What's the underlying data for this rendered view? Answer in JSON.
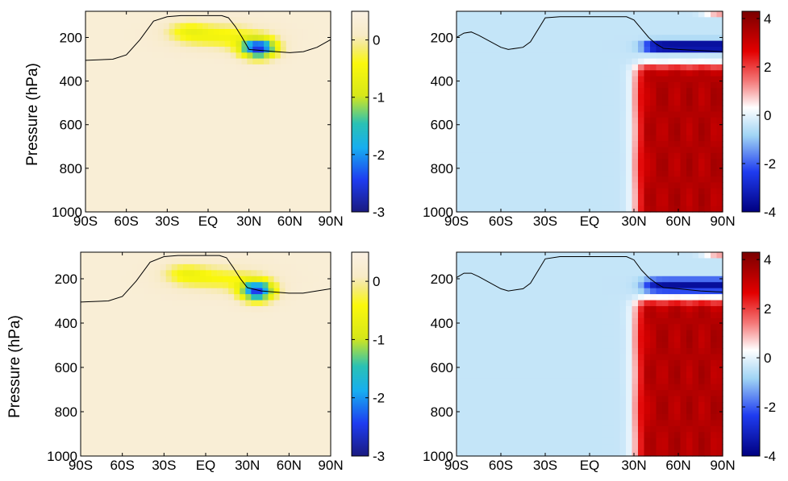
{
  "ylabel": "Pressure (hPa)",
  "chart_data": [
    {
      "type": "heatmap",
      "ylabel": "Pressure (hPa)",
      "x_ticks": [
        "90S",
        "60S",
        "30S",
        "EQ",
        "30N",
        "60N",
        "90N"
      ],
      "y_ticks": [
        "200",
        "400",
        "600",
        "800",
        "1000"
      ],
      "xlim": [
        -90,
        90
      ],
      "ylim": [
        1000,
        80
      ],
      "y_reversed": true,
      "colormap": "parula-reversed",
      "colorbar": {
        "ticks": [
          "0",
          "-1",
          "-2",
          "-3"
        ],
        "range": [
          -3,
          0.5
        ]
      },
      "background_value": 0.3,
      "features": [
        {
          "kind": "anomaly",
          "center_lat": 37,
          "center_p": 250,
          "peak": -2.8,
          "lat_halfwidth": 13,
          "p_halfwidth": 45
        },
        {
          "kind": "anomaly",
          "center_lat": 10,
          "center_p": 195,
          "peak": -0.8,
          "lat_halfwidth": 30,
          "p_halfwidth": 55
        },
        {
          "kind": "anomaly",
          "center_lat": -15,
          "center_p": 170,
          "peak": -0.6,
          "lat_halfwidth": 15,
          "p_halfwidth": 45
        }
      ],
      "tropopause": [
        [
          -90,
          305
        ],
        [
          -70,
          300
        ],
        [
          -60,
          280
        ],
        [
          -50,
          210
        ],
        [
          -40,
          125
        ],
        [
          -30,
          105
        ],
        [
          -20,
          100
        ],
        [
          0,
          100
        ],
        [
          10,
          100
        ],
        [
          15,
          110
        ],
        [
          20,
          150
        ],
        [
          25,
          200
        ],
        [
          30,
          255
        ],
        [
          40,
          260
        ],
        [
          50,
          265
        ],
        [
          60,
          270
        ],
        [
          70,
          265
        ],
        [
          80,
          245
        ],
        [
          90,
          210
        ]
      ]
    },
    {
      "type": "heatmap",
      "x_ticks": [
        "90S",
        "60S",
        "30S",
        "EQ",
        "30N",
        "60N",
        "90N"
      ],
      "y_ticks": [
        "200",
        "400",
        "600",
        "800",
        "1000"
      ],
      "xlim": [
        -90,
        90
      ],
      "ylim": [
        1000,
        80
      ],
      "y_reversed": true,
      "colormap": "blue-white-red",
      "colorbar": {
        "ticks": [
          "4",
          "2",
          "0",
          "-2",
          "-4"
        ],
        "range": [
          -4,
          4.3
        ]
      },
      "background_value": -0.4,
      "features": [
        {
          "kind": "block",
          "lat_from": 32,
          "lat_to": 90,
          "p_from": 330,
          "p_to": 1000,
          "value": 3.4
        },
        {
          "kind": "band",
          "lat_from": 38,
          "lat_to": 90,
          "p_center": 240,
          "p_halfwidth": 30,
          "value": -3.6
        },
        {
          "kind": "band",
          "lat_from": 80,
          "lat_to": 90,
          "p_center": 85,
          "p_halfwidth": 10,
          "value": 2.2
        }
      ],
      "tropopause": [
        [
          -90,
          200
        ],
        [
          -85,
          180
        ],
        [
          -80,
          175
        ],
        [
          -75,
          190
        ],
        [
          -60,
          245
        ],
        [
          -55,
          255
        ],
        [
          -45,
          245
        ],
        [
          -40,
          220
        ],
        [
          -30,
          110
        ],
        [
          -20,
          105
        ],
        [
          10,
          105
        ],
        [
          25,
          105
        ],
        [
          30,
          120
        ],
        [
          35,
          160
        ],
        [
          40,
          200
        ],
        [
          45,
          230
        ],
        [
          50,
          250
        ],
        [
          60,
          255
        ],
        [
          75,
          260
        ],
        [
          90,
          265
        ]
      ]
    },
    {
      "type": "heatmap",
      "ylabel": "Pressure (hPa)",
      "x_ticks": [
        "90S",
        "60S",
        "30S",
        "EQ",
        "30N",
        "60N",
        "90N"
      ],
      "y_ticks": [
        "200",
        "400",
        "600",
        "800",
        "1000"
      ],
      "xlim": [
        -90,
        90
      ],
      "ylim": [
        1000,
        80
      ],
      "y_reversed": true,
      "colormap": "parula-reversed",
      "colorbar": {
        "ticks": [
          "0",
          "-1",
          "-2",
          "-3"
        ],
        "range": [
          -3,
          0.5
        ]
      },
      "background_value": 0.3,
      "features": [
        {
          "kind": "anomaly",
          "center_lat": 37,
          "center_p": 255,
          "peak": -2.7,
          "lat_halfwidth": 12,
          "p_halfwidth": 45
        },
        {
          "kind": "anomaly",
          "center_lat": 10,
          "center_p": 200,
          "peak": -0.7,
          "lat_halfwidth": 30,
          "p_halfwidth": 55
        },
        {
          "kind": "anomaly",
          "center_lat": -15,
          "center_p": 175,
          "peak": -0.6,
          "lat_halfwidth": 15,
          "p_halfwidth": 45
        }
      ],
      "tropopause": [
        [
          -90,
          305
        ],
        [
          -70,
          300
        ],
        [
          -60,
          280
        ],
        [
          -50,
          210
        ],
        [
          -40,
          125
        ],
        [
          -30,
          100
        ],
        [
          -20,
          95
        ],
        [
          0,
          95
        ],
        [
          10,
          95
        ],
        [
          15,
          105
        ],
        [
          20,
          150
        ],
        [
          25,
          200
        ],
        [
          30,
          240
        ],
        [
          40,
          255
        ],
        [
          50,
          260
        ],
        [
          60,
          265
        ],
        [
          70,
          265
        ],
        [
          80,
          255
        ],
        [
          90,
          245
        ]
      ]
    },
    {
      "type": "heatmap",
      "x_ticks": [
        "90S",
        "60S",
        "30S",
        "EQ",
        "30N",
        "60N",
        "90N"
      ],
      "y_ticks": [
        "200",
        "400",
        "600",
        "800",
        "1000"
      ],
      "xlim": [
        -90,
        90
      ],
      "ylim": [
        1000,
        80
      ],
      "y_reversed": true,
      "colormap": "blue-white-red",
      "colorbar": {
        "ticks": [
          "4",
          "2",
          "0",
          "-2",
          "-4"
        ],
        "range": [
          -4,
          4.3
        ]
      },
      "background_value": -0.4,
      "features": [
        {
          "kind": "block",
          "lat_from": 32,
          "lat_to": 90,
          "p_from": 300,
          "p_to": 1000,
          "value": 3.4
        },
        {
          "kind": "band",
          "lat_from": 38,
          "lat_to": 90,
          "p_center": 230,
          "p_halfwidth": 30,
          "value": -3.6
        },
        {
          "kind": "band",
          "lat_from": 80,
          "lat_to": 90,
          "p_center": 85,
          "p_halfwidth": 10,
          "value": 2.2
        }
      ],
      "tropopause": [
        [
          -90,
          195
        ],
        [
          -85,
          175
        ],
        [
          -80,
          175
        ],
        [
          -75,
          190
        ],
        [
          -60,
          245
        ],
        [
          -55,
          255
        ],
        [
          -45,
          245
        ],
        [
          -40,
          220
        ],
        [
          -30,
          110
        ],
        [
          -20,
          100
        ],
        [
          10,
          100
        ],
        [
          25,
          100
        ],
        [
          30,
          115
        ],
        [
          35,
          160
        ],
        [
          40,
          195
        ],
        [
          45,
          220
        ],
        [
          50,
          240
        ],
        [
          60,
          245
        ],
        [
          75,
          255
        ],
        [
          90,
          260
        ]
      ]
    }
  ]
}
